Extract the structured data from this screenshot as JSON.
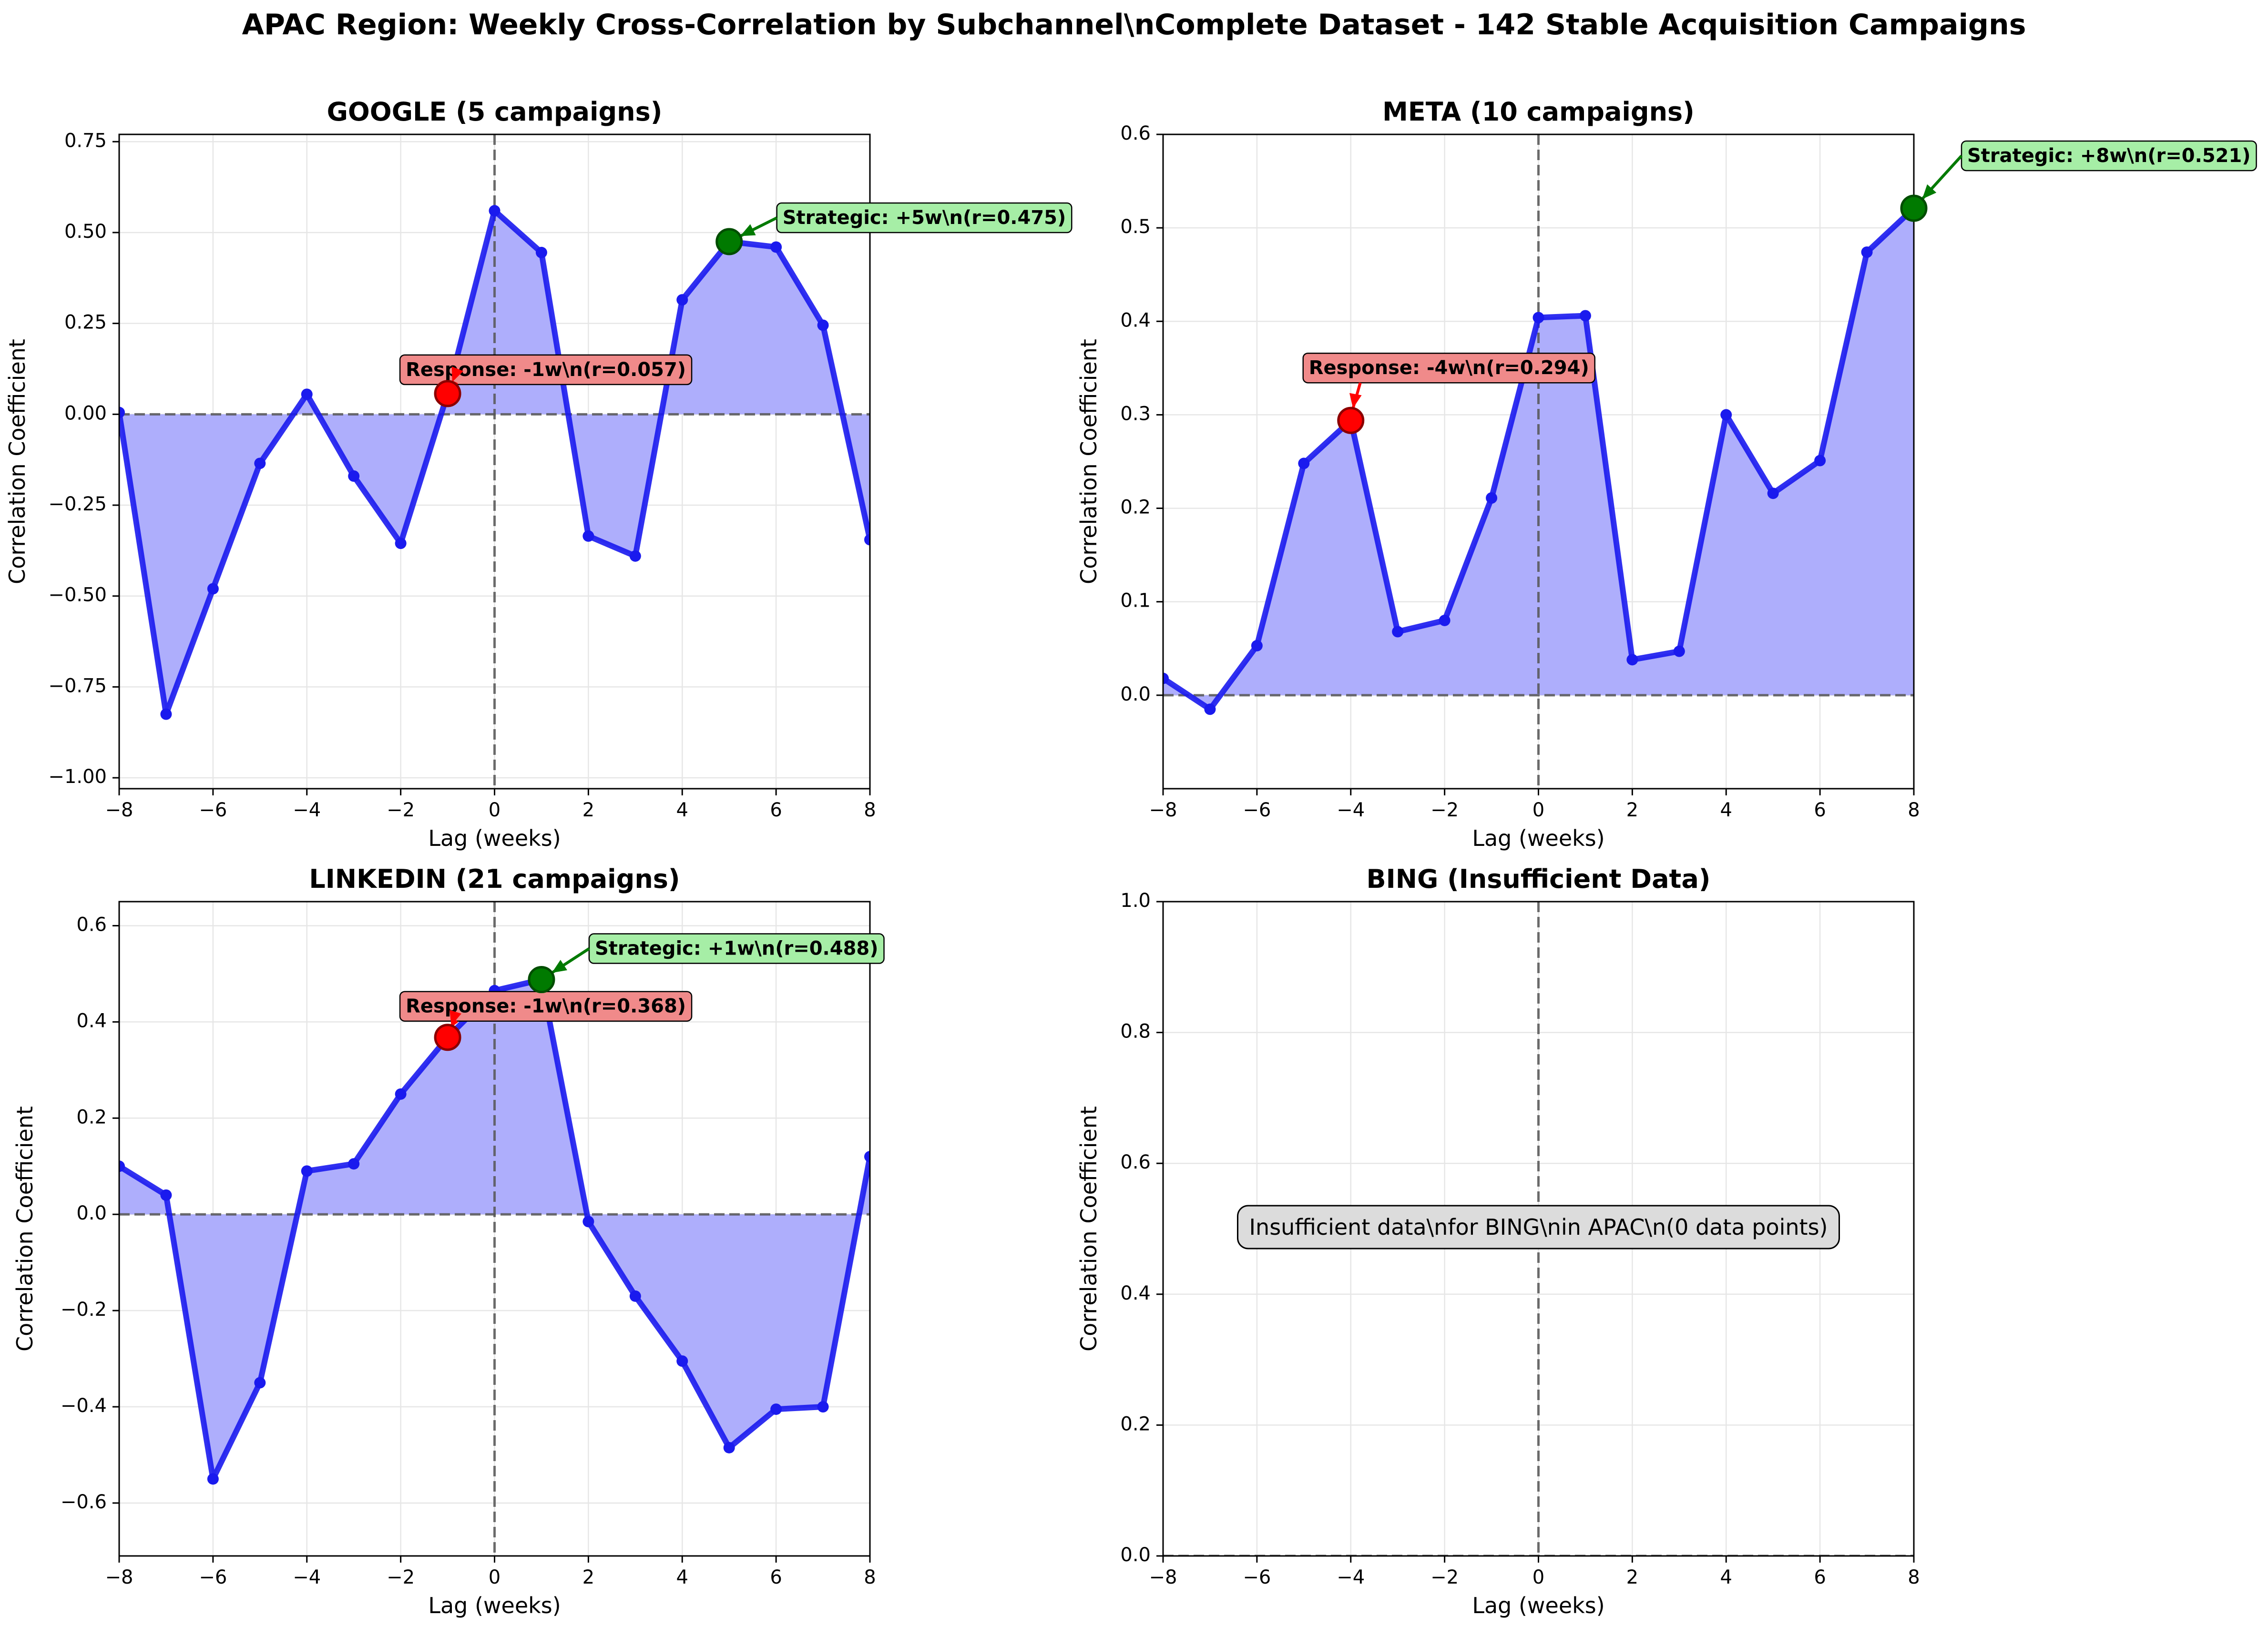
{
  "figure_title": "APAC Region: Weekly Cross-Correlation by Subchannel\\nComplete Dataset - 142 Stable Acquisition Campaigns",
  "colors": {
    "line": "#1a1aee",
    "fill": "#aeaefc",
    "response": "#ff0000",
    "response_box": "#f08a8a",
    "strategic": "#007a00",
    "strategic_box": "#a6eea6",
    "grid": "#e6e6e6",
    "note_box": "#dcdcdc"
  },
  "chart_data": [
    {
      "type": "line",
      "title": "GOOGLE (5 campaigns)",
      "xlabel": "Lag (weeks)",
      "ylabel": "Correlation Coefficient",
      "xlim": [
        -8,
        8
      ],
      "ylim": [
        -1.03,
        0.77
      ],
      "xticks": [
        "−8",
        "−6",
        "−4",
        "−2",
        "0",
        "2",
        "4",
        "6",
        "8"
      ],
      "yticks": [
        "−1.00",
        "−0.75",
        "−0.50",
        "−0.25",
        "0.00",
        "0.25",
        "0.50",
        "0.75"
      ],
      "grid": true,
      "x": [
        -8,
        -7,
        -6,
        -5,
        -4,
        -3,
        -2,
        -1,
        0,
        1,
        2,
        3,
        4,
        5,
        6,
        7,
        8
      ],
      "values": [
        0.005,
        -0.825,
        -0.48,
        -0.135,
        0.055,
        -0.17,
        -0.355,
        0.057,
        0.56,
        0.445,
        -0.335,
        -0.39,
        0.315,
        0.475,
        0.46,
        0.245,
        -0.345
      ],
      "response": {
        "x": -1,
        "y": 0.057,
        "label": "Response: -1w\\n(r=0.057)"
      },
      "strategic": {
        "x": 5,
        "y": 0.475,
        "label": "Strategic: +5w\\n(r=0.475)"
      }
    },
    {
      "type": "line",
      "title": "META (10 campaigns)",
      "xlabel": "Lag (weeks)",
      "ylabel": "Correlation Coefficient",
      "xlim": [
        -8,
        8
      ],
      "ylim": [
        -0.1,
        0.6
      ],
      "xticks": [
        "−8",
        "−6",
        "−4",
        "−2",
        "0",
        "2",
        "4",
        "6",
        "8"
      ],
      "yticks": [
        "0.0",
        "0.1",
        "0.2",
        "0.3",
        "0.4",
        "0.5",
        "0.6"
      ],
      "grid": true,
      "x": [
        -8,
        -7,
        -6,
        -5,
        -4,
        -3,
        -2,
        -1,
        0,
        1,
        2,
        3,
        4,
        5,
        6,
        7,
        8
      ],
      "values": [
        0.018,
        -0.015,
        0.053,
        0.248,
        0.294,
        0.068,
        0.08,
        0.211,
        0.404,
        0.406,
        0.038,
        0.047,
        0.3,
        0.216,
        0.251,
        0.474,
        0.521
      ],
      "response": {
        "x": -4,
        "y": 0.294,
        "label": "Response: -4w\\n(r=0.294)"
      },
      "strategic": {
        "x": 8,
        "y": 0.521,
        "label": "Strategic: +8w\\n(r=0.521)"
      }
    },
    {
      "type": "line",
      "title": "LINKEDIN (21 campaigns)",
      "xlabel": "Lag (weeks)",
      "ylabel": "Correlation Coefficient",
      "xlim": [
        -8,
        8
      ],
      "ylim": [
        -0.71,
        0.65
      ],
      "xticks": [
        "−8",
        "−6",
        "−4",
        "−2",
        "0",
        "2",
        "4",
        "6",
        "8"
      ],
      "yticks": [
        "−0.6",
        "−0.4",
        "−0.2",
        "0.0",
        "0.2",
        "0.4",
        "0.6"
      ],
      "grid": true,
      "x": [
        -8,
        -7,
        -6,
        -5,
        -4,
        -3,
        -2,
        -1,
        0,
        1,
        2,
        3,
        4,
        5,
        6,
        7,
        8
      ],
      "values": [
        0.1,
        0.04,
        -0.55,
        -0.35,
        0.09,
        0.105,
        0.25,
        0.368,
        0.465,
        0.488,
        -0.015,
        -0.17,
        -0.305,
        -0.485,
        -0.405,
        -0.4,
        0.12
      ],
      "response": {
        "x": -1,
        "y": 0.368,
        "label": "Response: -1w\\n(r=0.368)"
      },
      "strategic": {
        "x": 1,
        "y": 0.488,
        "label": "Strategic: +1w\\n(r=0.488)"
      }
    },
    {
      "type": "line",
      "title": "BING (Insufficient Data)",
      "xlabel": "Lag (weeks)",
      "ylabel": "Correlation Coefficient",
      "xlim": [
        -8,
        8
      ],
      "ylim": [
        0,
        1
      ],
      "xticks": [
        "−8",
        "−6",
        "−4",
        "−2",
        "0",
        "2",
        "4",
        "6",
        "8"
      ],
      "yticks": [
        "0.0",
        "0.2",
        "0.4",
        "0.6",
        "0.8",
        "1.0"
      ],
      "grid": true,
      "x": [],
      "values": [],
      "note": "Insufficient data\\nfor BING\\nin APAC\\n(0 data points)"
    }
  ]
}
